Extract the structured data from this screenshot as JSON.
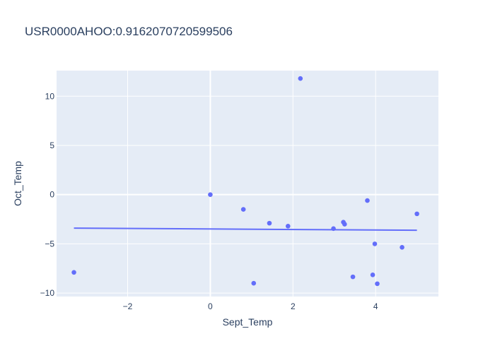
{
  "chart_data": {
    "type": "scatter",
    "title": "USR0000AHOO:0.9162070720599506",
    "xlabel": "Sept_Temp",
    "ylabel": "Oct_Temp",
    "xlim": [
      -3.72,
      5.52
    ],
    "ylim": [
      -10.35,
      12.6
    ],
    "xticks": [
      -2,
      0,
      2,
      4
    ],
    "xtick_labels": [
      "−2",
      "0",
      "2",
      "4"
    ],
    "yticks": [
      -10,
      -5,
      0,
      5,
      10
    ],
    "ytick_labels": [
      "−10",
      "−5",
      "0",
      "5",
      "10"
    ],
    "grid": true,
    "legend": "none",
    "colors": {
      "plot_bg": "#e5ecf6",
      "grid": "#ffffff",
      "marker": "#636efa",
      "trend": "#636efa"
    },
    "series": [
      {
        "mode": "markers",
        "x": [
          -3.3,
          0.0,
          0.8,
          1.05,
          1.43,
          1.88,
          2.18,
          2.98,
          3.22,
          3.25,
          3.45,
          3.8,
          3.93,
          3.98,
          4.04,
          4.64,
          5.0
        ],
        "y": [
          -7.9,
          0.0,
          -1.5,
          -9.0,
          -2.9,
          -3.2,
          11.8,
          -3.45,
          -2.8,
          -3.0,
          -8.35,
          -0.6,
          -8.15,
          -5.0,
          -9.05,
          -5.35,
          -1.95
        ]
      },
      {
        "mode": "lines",
        "x": [
          -3.3,
          5.0
        ],
        "y": [
          -3.4,
          -3.62
        ]
      }
    ]
  }
}
